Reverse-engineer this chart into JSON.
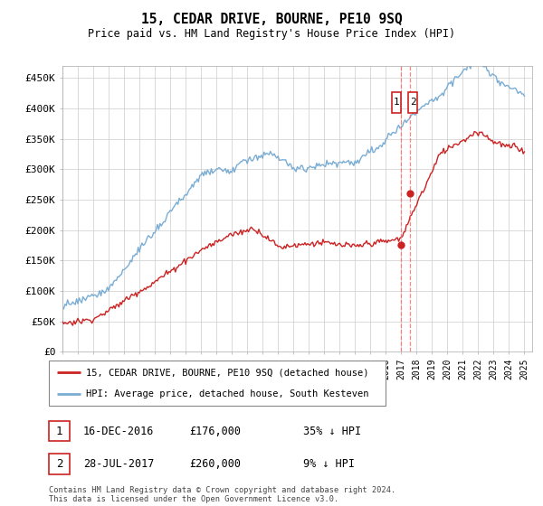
{
  "title": "15, CEDAR DRIVE, BOURNE, PE10 9SQ",
  "subtitle": "Price paid vs. HM Land Registry's House Price Index (HPI)",
  "ylabel_ticks": [
    "£0",
    "£50K",
    "£100K",
    "£150K",
    "£200K",
    "£250K",
    "£300K",
    "£350K",
    "£400K",
    "£450K"
  ],
  "ytick_values": [
    0,
    50000,
    100000,
    150000,
    200000,
    250000,
    300000,
    350000,
    400000,
    450000
  ],
  "ylim": [
    0,
    470000
  ],
  "xlim_start": 1995.0,
  "xlim_end": 2025.5,
  "hpi_color": "#7aadd4",
  "price_color": "#cc2222",
  "dashed_color": "#ff6666",
  "legend_label_price": "15, CEDAR DRIVE, BOURNE, PE10 9SQ (detached house)",
  "legend_label_hpi": "HPI: Average price, detached house, South Kesteven",
  "note1_date": "16-DEC-2016",
  "note1_price": "£176,000",
  "note1_pct": "35% ↓ HPI",
  "note2_date": "28-JUL-2017",
  "note2_price": "£260,000",
  "note2_pct": "9% ↓ HPI",
  "footer": "Contains HM Land Registry data © Crown copyright and database right 2024.\nThis data is licensed under the Open Government Licence v3.0.",
  "marker1_x": 2016.96,
  "marker1_y_price": 176000,
  "marker2_x": 2017.57,
  "marker2_y_price": 260000
}
